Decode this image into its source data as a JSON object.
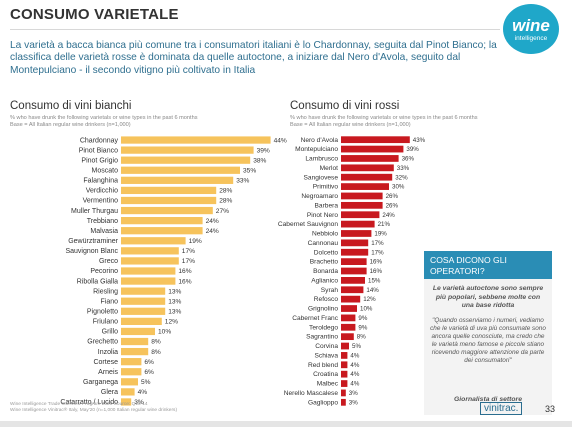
{
  "header": {
    "title": "CONSUMO VARIETALE",
    "logo": {
      "main": "wine",
      "sub": "intelligence"
    },
    "intro": "La varietà a bacca bianca più comune tra i consumatori italiani è lo Chardonnay, seguita dal Pinot Bianco; la classifica delle varietà rosse è dominata da quelle autoctone, a iniziare dal Nero d'Avola, seguito dal Montepulciano - il secondo vitigno più coltivato in Italia"
  },
  "panels": {
    "bianchi": {
      "title": "Consumo di vini bianchi",
      "note": "% who have drunk the following varietals or wine types in the past 6 months\nBase = All Italian regular wine drinkers (n=1,000)"
    },
    "rossi": {
      "title": "Consumo di vini rossi",
      "note": "% who have drunk the following varietals or wine types in the past 6 months\nBase = All Italian regular wine drinkers (n=1,000)"
    }
  },
  "operators": {
    "heading": "COSA DICONO GLI OPERATORI?",
    "lead": "Le varietà autoctone sono sempre più popolari, sebbene molte con una base ridotta",
    "quote": "\"Quando osserviamo i numeri, vediamo che le varietà di uva più consumate sono ancora quelle conosciute, ma credo che le varietà meno famose e piccole stiano ricevendo maggiore attenzione da parte dei consumatori\"",
    "author": "Giornalista di settore"
  },
  "footer": {
    "source": "Wine Intelligence Trade Interview Program 2020 Source: Q10-14\nWine Intelligence Vinitrac® Italy, May'20 (n=1,000 Italian regular wine drinkers)",
    "brand": "vinitrac.",
    "page": "33"
  },
  "colors": {
    "white_bar": "#f6c35c",
    "red_bar": "#c8191f",
    "accent": "#2a8db5",
    "intro_text": "#2f6f8f"
  },
  "chart_data": [
    {
      "type": "bar",
      "orientation": "horizontal",
      "title": "Consumo di vini bianchi",
      "categories": [
        "Chardonnay",
        "Pinot Bianco",
        "Pinot Grigio",
        "Moscato",
        "Falanghina",
        "Verdicchio",
        "Vermentino",
        "Muller Thurgau",
        "Trebbiano",
        "Malvasia",
        "Gewürztraminer",
        "Sauvignon Blanc",
        "Greco",
        "Pecorino",
        "Ribolla Gialla",
        "Riesling",
        "Fiano",
        "Pignoletto",
        "Friulano",
        "Grillo",
        "Grechetto",
        "Inzolia",
        "Cortese",
        "Arneis",
        "Garganega",
        "Glera",
        "Catarratto / Lucido"
      ],
      "values": [
        44,
        39,
        38,
        35,
        33,
        28,
        28,
        27,
        24,
        24,
        19,
        17,
        17,
        16,
        16,
        13,
        13,
        13,
        12,
        10,
        8,
        8,
        6,
        6,
        5,
        4,
        3
      ],
      "value_format": "percent"
    },
    {
      "type": "bar",
      "orientation": "horizontal",
      "title": "Consumo di vini rossi",
      "categories": [
        "Nero d'Avola",
        "Montepulciano",
        "Lambrusco",
        "Merlot",
        "Sangiovese",
        "Primitivo",
        "Negroamaro",
        "Barbera",
        "Pinot Nero",
        "Cabernet Sauvignon",
        "Nebbiolo",
        "Cannonau",
        "Dolcetto",
        "Brachetto",
        "Bonarda",
        "Aglianico",
        "Syrah",
        "Refosco",
        "Grignolino",
        "Cabernet Franc",
        "Teroldego",
        "Sagrantino",
        "Corvina",
        "Schiava",
        "Red blend",
        "Croatina",
        "Malbec",
        "Nerello Mascalese",
        "Gaglioppo"
      ],
      "values": [
        43,
        39,
        36,
        33,
        32,
        30,
        26,
        26,
        24,
        21,
        19,
        17,
        17,
        16,
        16,
        15,
        14,
        12,
        10,
        9,
        9,
        8,
        5,
        4,
        4,
        4,
        4,
        3,
        3
      ],
      "value_format": "percent"
    }
  ]
}
